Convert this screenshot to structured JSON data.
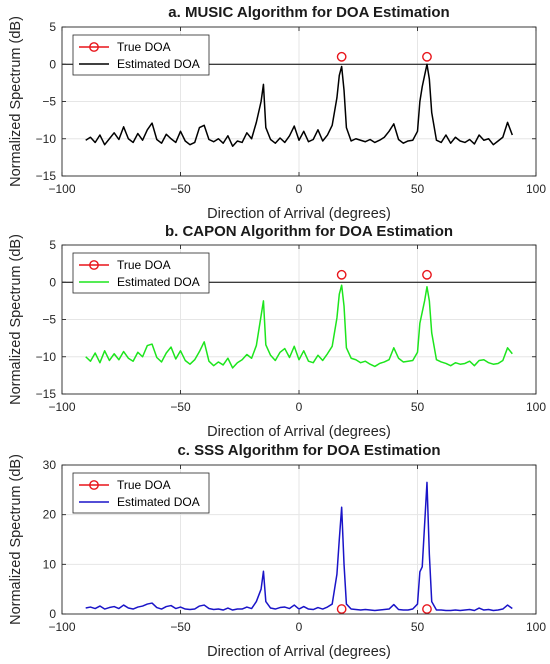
{
  "colors": {
    "true_doa": "#e8141a",
    "zero_line": "#000000"
  },
  "chart_data": [
    {
      "type": "line",
      "title": "a. MUSIC Algorithm for DOA Estimation",
      "xlabel": "Direction of Arrival (degrees)",
      "ylabel": "Normalized Spectrum (dB)",
      "xlim": [
        -100,
        100
      ],
      "ylim": [
        -15,
        5
      ],
      "xticks": [
        -100,
        -50,
        0,
        50,
        100
      ],
      "yticks": [
        -15,
        -10,
        -5,
        0,
        5
      ],
      "grid": true,
      "legend_position": "top-left",
      "reference_line": 0,
      "series": [
        {
          "name": "True DOA",
          "style": "marker",
          "color": "#e8141a",
          "x": [
            18,
            54
          ],
          "y": [
            1,
            1
          ]
        },
        {
          "name": "Estimated DOA",
          "style": "line",
          "color": "#000000",
          "x": [
            -90,
            -88,
            -86,
            -84,
            -82,
            -80,
            -78,
            -76,
            -74,
            -72,
            -70,
            -68,
            -66,
            -64,
            -62,
            -60,
            -58,
            -56,
            -54,
            -52,
            -50,
            -48,
            -46,
            -44,
            -42,
            -40,
            -38,
            -36,
            -34,
            -32,
            -30,
            -28,
            -26,
            -24,
            -22,
            -20,
            -18,
            -16,
            -15,
            -14,
            -12,
            -10,
            -8,
            -6,
            -4,
            -2,
            0,
            2,
            4,
            6,
            8,
            10,
            12,
            14,
            16,
            17,
            18,
            19,
            20,
            22,
            24,
            26,
            28,
            30,
            32,
            34,
            36,
            38,
            40,
            42,
            44,
            46,
            48,
            50,
            51,
            52,
            53,
            54,
            55,
            56,
            58,
            60,
            62,
            64,
            66,
            68,
            70,
            72,
            74,
            76,
            78,
            80,
            82,
            84,
            86,
            88,
            90
          ],
          "y": [
            -10.2,
            -9.8,
            -10.5,
            -9.5,
            -10.8,
            -10.0,
            -9.2,
            -10.1,
            -8.4,
            -10.0,
            -10.5,
            -9.3,
            -10.2,
            -8.8,
            -7.9,
            -10.1,
            -10.6,
            -9.4,
            -10.0,
            -10.5,
            -9.0,
            -10.3,
            -10.8,
            -10.5,
            -8.5,
            -8.2,
            -10.1,
            -10.4,
            -10.0,
            -10.6,
            -9.6,
            -11.0,
            -10.3,
            -10.5,
            -9.2,
            -10.0,
            -7.8,
            -5.0,
            -2.7,
            -8.5,
            -10.1,
            -10.6,
            -9.9,
            -10.5,
            -9.6,
            -8.3,
            -10.2,
            -9.0,
            -10.4,
            -10.1,
            -8.8,
            -10.3,
            -9.5,
            -8.2,
            -4.5,
            -1.5,
            -0.3,
            -3.5,
            -8.5,
            -10.3,
            -10.0,
            -10.2,
            -10.4,
            -10.1,
            -10.5,
            -10.2,
            -9.8,
            -9.0,
            -8.0,
            -10.1,
            -10.6,
            -10.3,
            -10.2,
            -9.0,
            -5.0,
            -3.0,
            -1.5,
            0.0,
            -2.0,
            -6.5,
            -10.2,
            -10.5,
            -9.5,
            -10.6,
            -9.8,
            -10.3,
            -10.5,
            -10.1,
            -10.7,
            -9.5,
            -10.2,
            -10.0,
            -10.8,
            -10.3,
            -9.8,
            -7.8,
            -9.5
          ]
        }
      ]
    },
    {
      "type": "line",
      "title": "b. CAPON Algorithm for DOA Estimation",
      "xlabel": "Direction of Arrival (degrees)",
      "ylabel": "Normalized Spectrum (dB)",
      "xlim": [
        -100,
        100
      ],
      "ylim": [
        -15,
        5
      ],
      "xticks": [
        -100,
        -50,
        0,
        50,
        100
      ],
      "yticks": [
        -15,
        -10,
        -5,
        0,
        5
      ],
      "grid": true,
      "legend_position": "top-left",
      "reference_line": 0,
      "series": [
        {
          "name": "True DOA",
          "style": "marker",
          "color": "#e8141a",
          "x": [
            18,
            54
          ],
          "y": [
            1,
            1
          ]
        },
        {
          "name": "Estimated DOA",
          "style": "line",
          "color": "#1de51d",
          "x": [
            -90,
            -88,
            -86,
            -84,
            -82,
            -80,
            -78,
            -76,
            -74,
            -72,
            -70,
            -68,
            -66,
            -64,
            -62,
            -60,
            -58,
            -56,
            -54,
            -52,
            -50,
            -48,
            -46,
            -44,
            -42,
            -40,
            -38,
            -36,
            -34,
            -32,
            -30,
            -28,
            -26,
            -24,
            -22,
            -20,
            -18,
            -16,
            -15,
            -14,
            -12,
            -10,
            -8,
            -6,
            -4,
            -2,
            0,
            2,
            4,
            6,
            8,
            10,
            12,
            14,
            16,
            17,
            18,
            19,
            20,
            22,
            24,
            26,
            28,
            30,
            32,
            34,
            36,
            38,
            40,
            42,
            44,
            46,
            48,
            50,
            51,
            52,
            53,
            54,
            55,
            56,
            58,
            60,
            62,
            64,
            66,
            68,
            70,
            72,
            74,
            76,
            78,
            80,
            82,
            84,
            86,
            88,
            90
          ],
          "y": [
            -10.0,
            -10.6,
            -9.5,
            -10.8,
            -9.2,
            -10.5,
            -9.6,
            -10.4,
            -9.3,
            -10.2,
            -10.6,
            -9.4,
            -10.0,
            -8.5,
            -8.3,
            -10.1,
            -10.7,
            -9.5,
            -8.7,
            -10.3,
            -9.2,
            -10.5,
            -11.0,
            -10.4,
            -9.3,
            -8.0,
            -10.6,
            -11.2,
            -10.7,
            -11.1,
            -10.2,
            -11.5,
            -10.8,
            -10.4,
            -9.7,
            -10.2,
            -8.5,
            -4.5,
            -2.5,
            -8.4,
            -9.8,
            -10.5,
            -9.4,
            -8.9,
            -10.1,
            -8.6,
            -10.4,
            -9.2,
            -10.6,
            -10.8,
            -9.8,
            -10.5,
            -9.6,
            -8.6,
            -4.8,
            -1.6,
            -0.4,
            -3.2,
            -8.8,
            -10.2,
            -10.4,
            -10.8,
            -10.6,
            -11.0,
            -11.3,
            -10.9,
            -10.7,
            -10.4,
            -8.8,
            -10.2,
            -10.7,
            -10.6,
            -10.5,
            -9.4,
            -5.5,
            -4.0,
            -2.5,
            -0.6,
            -2.5,
            -6.8,
            -10.4,
            -10.7,
            -10.9,
            -11.2,
            -10.8,
            -11.0,
            -10.9,
            -10.6,
            -11.2,
            -10.5,
            -10.4,
            -10.8,
            -11.0,
            -10.9,
            -10.5,
            -8.8,
            -9.6
          ]
        }
      ]
    },
    {
      "type": "line",
      "title": "c. SSS Algorithm for DOA Estimation",
      "xlabel": "Direction of Arrival (degrees)",
      "ylabel": "Normalized Spectrum (dB)",
      "xlim": [
        -100,
        100
      ],
      "ylim": [
        0,
        30
      ],
      "xticks": [
        -100,
        -50,
        0,
        50,
        100
      ],
      "yticks": [
        0,
        10,
        20,
        30
      ],
      "grid": true,
      "legend_position": "top-left",
      "series": [
        {
          "name": "True DOA",
          "style": "marker",
          "color": "#e8141a",
          "x": [
            18,
            54
          ],
          "y": [
            1,
            1
          ]
        },
        {
          "name": "Estimated DOA",
          "style": "line",
          "color": "#1a14c8",
          "x": [
            -90,
            -88,
            -86,
            -84,
            -82,
            -80,
            -78,
            -76,
            -74,
            -72,
            -70,
            -68,
            -66,
            -64,
            -62,
            -60,
            -58,
            -56,
            -54,
            -52,
            -50,
            -48,
            -46,
            -44,
            -42,
            -40,
            -38,
            -36,
            -34,
            -32,
            -30,
            -28,
            -26,
            -24,
            -22,
            -20,
            -18,
            -16,
            -15,
            -14,
            -12,
            -10,
            -8,
            -6,
            -4,
            -2,
            0,
            2,
            4,
            6,
            8,
            10,
            12,
            14,
            16,
            17,
            18,
            19,
            20,
            22,
            24,
            26,
            28,
            30,
            32,
            34,
            36,
            38,
            40,
            42,
            44,
            46,
            48,
            50,
            51,
            52,
            53,
            54,
            55,
            56,
            58,
            60,
            62,
            64,
            66,
            68,
            70,
            72,
            74,
            76,
            78,
            80,
            82,
            84,
            86,
            88,
            90
          ],
          "y": [
            1.2,
            1.4,
            1.1,
            1.6,
            1.0,
            1.3,
            1.5,
            1.1,
            1.8,
            1.2,
            1.0,
            1.4,
            1.6,
            2.0,
            2.2,
            1.3,
            1.0,
            1.5,
            1.7,
            1.1,
            1.4,
            1.0,
            0.9,
            1.0,
            1.6,
            1.8,
            1.1,
            0.9,
            1.0,
            0.8,
            1.2,
            0.8,
            1.0,
            1.0,
            1.4,
            1.1,
            2.5,
            5.0,
            8.6,
            2.5,
            1.2,
            1.0,
            1.3,
            1.4,
            1.1,
            1.8,
            1.0,
            1.5,
            1.0,
            0.9,
            1.3,
            1.0,
            1.4,
            2.0,
            8.0,
            15.0,
            21.5,
            10.0,
            2.0,
            1.0,
            0.9,
            0.8,
            0.9,
            0.8,
            0.7,
            0.8,
            0.9,
            1.0,
            1.9,
            0.9,
            0.8,
            0.8,
            1.0,
            2.0,
            8.5,
            9.5,
            18.0,
            26.5,
            12.0,
            2.5,
            0.8,
            0.8,
            0.7,
            0.7,
            0.8,
            0.7,
            0.8,
            0.9,
            0.7,
            1.2,
            0.8,
            0.9,
            0.7,
            0.8,
            1.0,
            1.8,
            1.1
          ]
        }
      ]
    }
  ]
}
